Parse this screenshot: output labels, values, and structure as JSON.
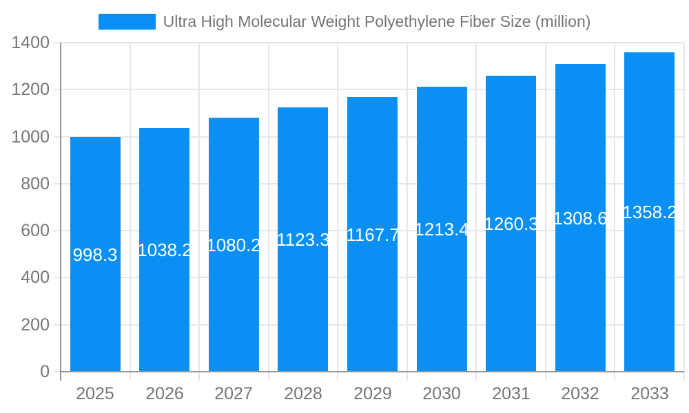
{
  "legend": {
    "label": "Ultra High Molecular Weight Polyethylene Fiber Size (million)"
  },
  "colors": {
    "bar": "#0a8ff4",
    "grid": "#e6e6e6",
    "axis": "#969696",
    "tick_text": "#757575",
    "value_text": "#ffffff",
    "background": "#ffffff"
  },
  "chart_data": {
    "type": "bar",
    "title": "Ultra High Molecular Weight Polyethylene Fiber Size (million)",
    "categories": [
      "2025",
      "2026",
      "2027",
      "2028",
      "2029",
      "2030",
      "2031",
      "2032",
      "2033"
    ],
    "values": [
      998.3,
      1038.2,
      1080.2,
      1123.3,
      1167.7,
      1213.4,
      1260.3,
      1308.6,
      1358.2
    ],
    "value_labels": [
      "998.3",
      "1038.2",
      "1080.2",
      "1123.3",
      "1167.7",
      "1213.4",
      "1260.3",
      "1308.6",
      "1358.2"
    ],
    "xlabel": "",
    "ylabel": "",
    "ylim": [
      0,
      1400
    ],
    "yticks": [
      0,
      200,
      400,
      600,
      800,
      1000,
      1200,
      1400
    ],
    "grid": true,
    "legend_position": "top-center",
    "value_label_position": "inside-middle"
  }
}
